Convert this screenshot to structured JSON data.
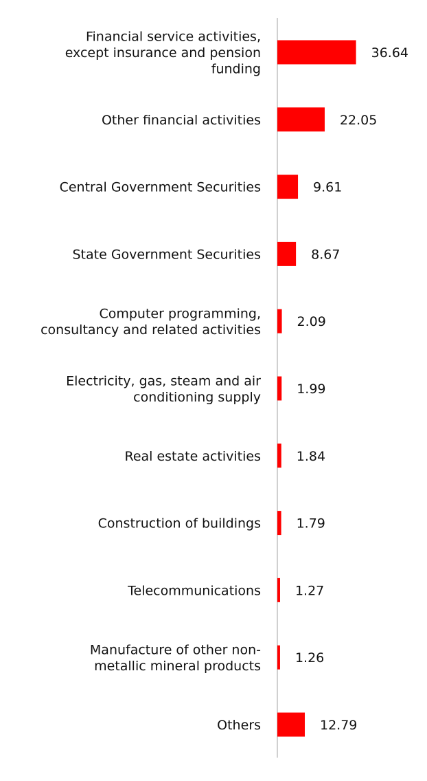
{
  "chart_data": {
    "type": "bar",
    "orientation": "horizontal",
    "categories": [
      "Financial service activities, except insurance and pension funding",
      "Other financial activities",
      "Central Government Securities",
      "State Government Securities",
      "Computer programming, consultancy and related activities",
      "Electricity, gas, steam and air conditioning supply",
      "Real estate activities",
      "Construction of buildings",
      "Telecommunications",
      "Manufacture of other non-metallic mineral products",
      "Others"
    ],
    "category_lines": [
      [
        "Financial service activities,",
        "except insurance and pension",
        "funding"
      ],
      [
        "Other financial activities"
      ],
      [
        "Central Government Securities"
      ],
      [
        "State Government Securities"
      ],
      [
        "Computer programming,",
        "consultancy and related activities"
      ],
      [
        "Electricity, gas, steam and air",
        "conditioning supply"
      ],
      [
        "Real estate activities"
      ],
      [
        "Construction of buildings"
      ],
      [
        "Telecommunications"
      ],
      [
        "Manufacture of other non-",
        "metallic mineral products"
      ],
      [
        "Others"
      ]
    ],
    "values": [
      36.64,
      22.05,
      9.61,
      8.67,
      2.09,
      1.99,
      1.84,
      1.79,
      1.27,
      1.26,
      12.79
    ],
    "value_labels": [
      "36.64",
      "22.05",
      "9.61",
      "8.67",
      "2.09",
      "1.99",
      "1.84",
      "1.79",
      "1.27",
      "1.26",
      "12.79"
    ],
    "title": "",
    "xlabel": "",
    "ylabel": "",
    "grid": false,
    "legend": "none",
    "bar_color": "#ff0000",
    "axis_color": "#d0d0d0"
  }
}
